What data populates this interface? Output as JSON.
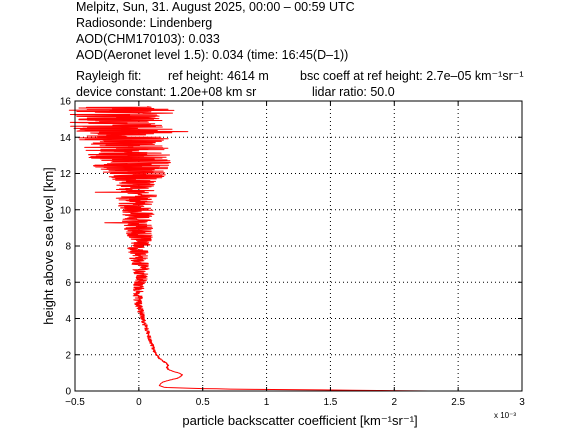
{
  "header": {
    "line1": "Melpitz, Sun, 31. August 2025, 00:00 – 00:59 UTC",
    "line2": "Radiosonde: Lindenberg",
    "line3": "AOD(CHM170103): 0.033",
    "line4": "AOD(Aeronet level 1.5): 0.034   (time: 16:45(D–1))",
    "rayleigh_label": "Rayleigh fit:",
    "ref_height": "ref height: 4614 m",
    "bsc_coeff": "bsc coeff at ref height: 2.7e–05 km⁻¹sr⁻¹",
    "device_constant": "device constant: 1.20e+08 km sr",
    "lidar_ratio": "lidar ratio: 50.0"
  },
  "chart_data": {
    "type": "line",
    "xlabel": "particle backscatter coefficient [km⁻¹sr⁻¹]",
    "ylabel": "height above sea level [km]",
    "x_multiplier_label": "x 10⁻³",
    "xlim": [
      -0.5,
      3.0
    ],
    "ylim": [
      0,
      16
    ],
    "xticks": [
      -0.5,
      0,
      0.5,
      1,
      1.5,
      2,
      2.5,
      3
    ],
    "xtick_labels": [
      "−0.5",
      "0",
      "0.5",
      "1",
      "1.5",
      "2",
      "2.5",
      "3"
    ],
    "yticks": [
      0,
      2,
      4,
      6,
      8,
      10,
      12,
      14,
      16
    ],
    "ytick_labels": [
      "0",
      "2",
      "4",
      "6",
      "8",
      "10",
      "12",
      "14",
      "16"
    ],
    "grid": true,
    "series": [
      {
        "color": "#ff0000",
        "profile_km_vs_1e-3": [
          [
            0.0,
            2.27
          ],
          [
            0.05,
            1.6
          ],
          [
            0.1,
            0.75
          ],
          [
            0.15,
            0.4
          ],
          [
            0.2,
            0.2
          ],
          [
            0.3,
            0.16
          ],
          [
            0.4,
            0.17
          ],
          [
            0.5,
            0.19
          ],
          [
            0.6,
            0.24
          ],
          [
            0.7,
            0.3
          ],
          [
            0.8,
            0.33
          ],
          [
            0.9,
            0.34
          ],
          [
            1.0,
            0.31
          ],
          [
            1.1,
            0.26
          ],
          [
            1.2,
            0.23
          ],
          [
            1.3,
            0.22
          ],
          [
            1.4,
            0.23
          ],
          [
            1.5,
            0.22
          ],
          [
            1.6,
            0.2
          ],
          [
            1.7,
            0.18
          ],
          [
            1.8,
            0.16
          ],
          [
            1.9,
            0.15
          ],
          [
            2.0,
            0.14
          ],
          [
            2.2,
            0.12
          ],
          [
            2.4,
            0.11
          ],
          [
            2.6,
            0.1
          ],
          [
            2.8,
            0.09
          ],
          [
            3.0,
            0.08
          ],
          [
            3.2,
            0.07
          ],
          [
            3.4,
            0.06
          ],
          [
            3.6,
            0.05
          ],
          [
            3.8,
            0.04
          ],
          [
            4.0,
            0.03
          ],
          [
            4.3,
            0.02
          ],
          [
            4.6,
            0.0
          ],
          [
            5.0,
            -0.01
          ],
          [
            5.5,
            0.0
          ],
          [
            6.0,
            0.01
          ],
          [
            6.5,
            0.02
          ],
          [
            7.0,
            0.01
          ],
          [
            7.5,
            0.0
          ],
          [
            8.0,
            0.0
          ],
          [
            8.5,
            0.01
          ],
          [
            9.0,
            0.0
          ],
          [
            9.5,
            -0.01
          ],
          [
            10.0,
            -0.02
          ],
          [
            10.5,
            -0.01
          ],
          [
            11.0,
            -0.02
          ],
          [
            11.5,
            0.0
          ],
          [
            12.0,
            -0.03
          ],
          [
            12.5,
            -0.05
          ],
          [
            13.0,
            -0.08
          ],
          [
            13.5,
            -0.1
          ],
          [
            14.0,
            -0.12
          ],
          [
            14.5,
            -0.13
          ],
          [
            15.0,
            -0.15
          ],
          [
            15.5,
            -0.14
          ],
          [
            15.7,
            -0.12
          ]
        ],
        "noise_amplitude_1e-3": [
          [
            0.0,
            0.0
          ],
          [
            4.0,
            0.02
          ],
          [
            6.0,
            0.05
          ],
          [
            8.0,
            0.09
          ],
          [
            10.0,
            0.14
          ],
          [
            11.5,
            0.17
          ],
          [
            12.5,
            0.32
          ],
          [
            13.5,
            0.34
          ],
          [
            14.5,
            0.4
          ],
          [
            15.7,
            0.42
          ]
        ]
      }
    ]
  }
}
